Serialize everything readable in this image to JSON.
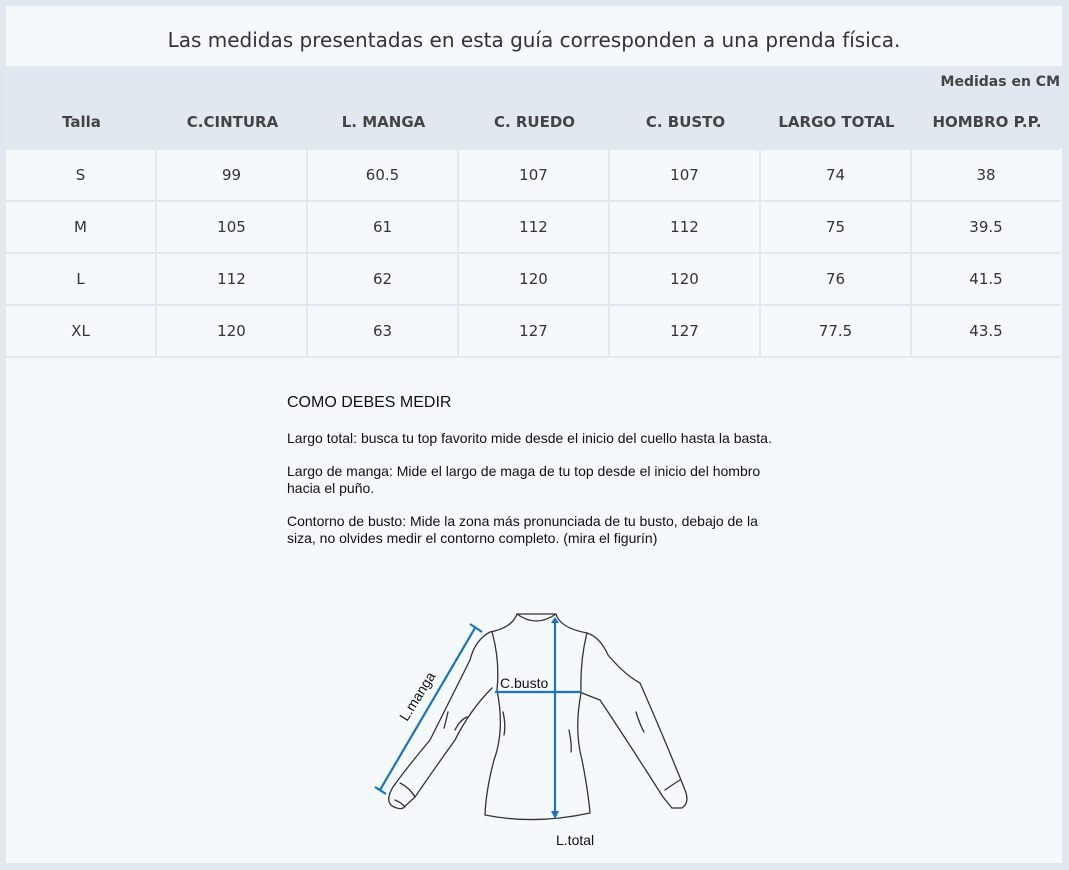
{
  "title": "Las medidas presentadas en esta guía corresponden a una prenda física.",
  "unit_label": "Medidas en CM",
  "table": {
    "headers": [
      "Talla",
      "C.CINTURA",
      "L. MANGA",
      "C. RUEDO",
      "C. BUSTO",
      "LARGO TOTAL",
      "HOMBRO P.P."
    ],
    "rows": [
      [
        "S",
        "99",
        "60.5",
        "107",
        "107",
        "74",
        "38"
      ],
      [
        "M",
        "105",
        "61",
        "112",
        "112",
        "75",
        "39.5"
      ],
      [
        "L",
        "112",
        "62",
        "120",
        "120",
        "76",
        "41.5"
      ],
      [
        "XL",
        "120",
        "63",
        "127",
        "127",
        "77.5",
        "43.5"
      ]
    ]
  },
  "instructions": {
    "heading": "COMO DEBES MEDIR",
    "paragraphs": [
      "Largo total: busca tu top favorito mide desde el inicio del cuello hasta la basta.",
      "Largo de manga: Mide el largo de maga de tu top desde el inicio del hombro hacia el puño.",
      "Contorno de busto: Mide la zona más pronunciada de tu busto, debajo de la siza, no olvides medir el contorno completo. (mira el figurín)"
    ]
  },
  "figure": {
    "label_sleeve": "L.manga",
    "label_bust": "C.busto",
    "label_total": "L.total",
    "accent_color": "#1a74c2"
  }
}
